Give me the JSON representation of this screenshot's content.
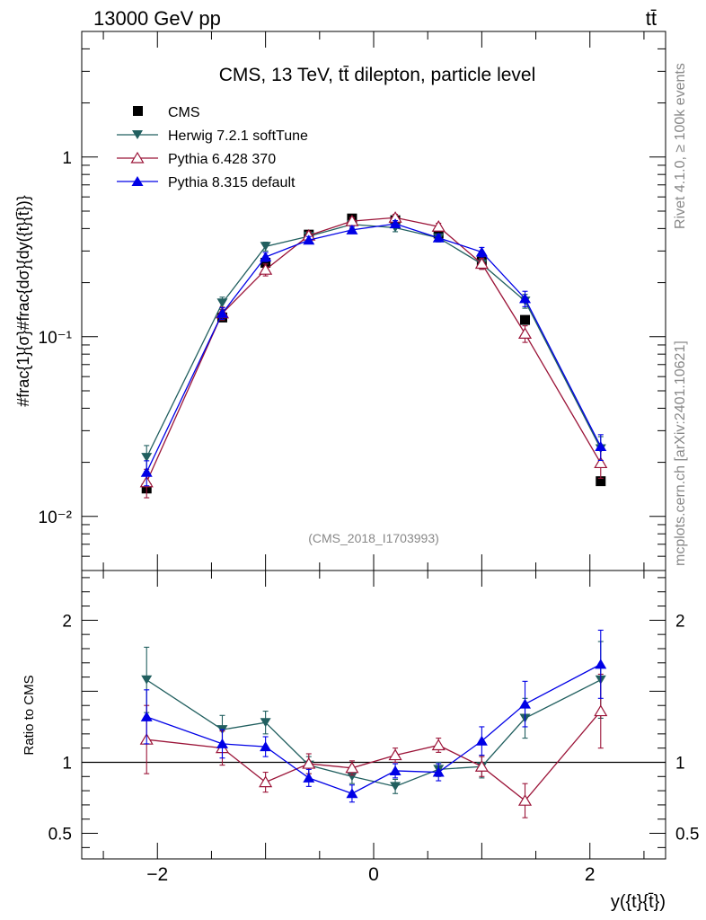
{
  "header": {
    "energy_label": "13000 GeV pp",
    "process_label": "tt̄"
  },
  "side_text": {
    "rivet": "Rivet 4.1.0, ≥ 100k events",
    "source": "mcplots.cern.ch [arXiv:2401.10621]"
  },
  "chart_data": [
    {
      "type": "line",
      "panel": "main",
      "title": "CMS, 13 TeV, tt̄ dilepton, particle level",
      "watermark": "(CMS_2018_I1703993)",
      "ylabel": "#frac{1}{σ}#frac{dσ}{dy({t}{t̄})}",
      "yscale": "log",
      "ylim": [
        0.005,
        5.0
      ],
      "xlim": [
        -2.7,
        2.7
      ],
      "ytick_labels": [
        {
          "value": 1,
          "label": "1"
        },
        {
          "value": 0.1,
          "label": "10⁻¹"
        },
        {
          "value": 0.01,
          "label": "10⁻²"
        }
      ],
      "x": [
        -2.1,
        -1.4,
        -1.0,
        -0.6,
        -0.2,
        0.2,
        0.6,
        1.0,
        1.4,
        2.1
      ],
      "series": [
        {
          "name": "CMS",
          "color": "#000000",
          "marker": "square",
          "values": [
            0.0143,
            0.128,
            0.258,
            0.37,
            0.455,
            0.445,
            0.375,
            0.262,
            0.124,
            0.0157
          ],
          "errors": [
            0,
            0,
            0,
            0,
            0,
            0,
            0,
            0,
            0,
            0
          ]
        },
        {
          "name": "Herwig 7.2.1 softTune",
          "color": "#215f5f",
          "marker": "triangle-down",
          "values": [
            0.0213,
            0.154,
            0.318,
            0.362,
            0.422,
            0.404,
            0.355,
            0.254,
            0.158,
            0.0238
          ],
          "errors": [
            0.0035,
            0.012,
            0.018,
            0.018,
            0.02,
            0.02,
            0.018,
            0.016,
            0.014,
            0.004
          ]
        },
        {
          "name": "Pythia 6.428 370",
          "color": "#9b1438",
          "marker": "triangle-open",
          "values": [
            0.0155,
            0.135,
            0.236,
            0.366,
            0.44,
            0.46,
            0.41,
            0.255,
            0.104,
            0.0198
          ],
          "errors": [
            0.0028,
            0.011,
            0.018,
            0.018,
            0.02,
            0.02,
            0.018,
            0.018,
            0.011,
            0.0035
          ]
        },
        {
          "name": "Pythia 8.315 default",
          "color": "#0000e6",
          "marker": "triangle-up",
          "values": [
            0.0176,
            0.135,
            0.278,
            0.345,
            0.393,
            0.425,
            0.355,
            0.296,
            0.163,
            0.0245
          ],
          "errors": [
            0.0028,
            0.01,
            0.016,
            0.016,
            0.018,
            0.018,
            0.016,
            0.018,
            0.016,
            0.004
          ]
        }
      ]
    },
    {
      "type": "line",
      "panel": "ratio",
      "ylabel": "Ratio to CMS",
      "xlabel": "y({t}{t̄})",
      "yscale": "linear",
      "ylim": [
        0.32,
        2.35
      ],
      "xlim": [
        -2.7,
        2.7
      ],
      "reference_line": 1,
      "ytick_labels": [
        {
          "value": 2,
          "label": "2"
        },
        {
          "value": 1,
          "label": "1"
        },
        {
          "value": 0.5,
          "label": "0.5"
        }
      ],
      "xtick_labels": [
        {
          "value": -2,
          "label": "−2"
        },
        {
          "value": 0,
          "label": "0"
        },
        {
          "value": 2,
          "label": "2"
        }
      ],
      "x": [
        -2.1,
        -1.4,
        -1.0,
        -0.6,
        -0.2,
        0.2,
        0.6,
        1.0,
        1.4,
        2.1
      ],
      "series": [
        {
          "name": "Herwig 7.2.1 softTune",
          "color": "#215f5f",
          "marker": "triangle-down",
          "values": [
            1.58,
            1.23,
            1.28,
            0.98,
            0.9,
            0.83,
            0.95,
            0.97,
            1.31,
            1.58
          ],
          "errors": [
            0.23,
            0.1,
            0.08,
            0.06,
            0.05,
            0.05,
            0.05,
            0.08,
            0.14,
            0.27
          ]
        },
        {
          "name": "Pythia 6.428 370",
          "color": "#9b1438",
          "marker": "triangle-open",
          "values": [
            1.16,
            1.1,
            0.86,
            0.99,
            0.96,
            1.05,
            1.12,
            0.97,
            0.73,
            1.36
          ],
          "errors": [
            0.24,
            0.12,
            0.07,
            0.07,
            0.05,
            0.05,
            0.05,
            0.07,
            0.12,
            0.26
          ]
        },
        {
          "name": "Pythia 8.315 default",
          "color": "#0000e6",
          "marker": "triangle-up",
          "values": [
            1.32,
            1.13,
            1.11,
            0.89,
            0.78,
            0.94,
            0.93,
            1.15,
            1.41,
            1.69
          ],
          "errors": [
            0.19,
            0.1,
            0.07,
            0.06,
            0.06,
            0.05,
            0.06,
            0.1,
            0.16,
            0.24
          ]
        }
      ]
    }
  ]
}
